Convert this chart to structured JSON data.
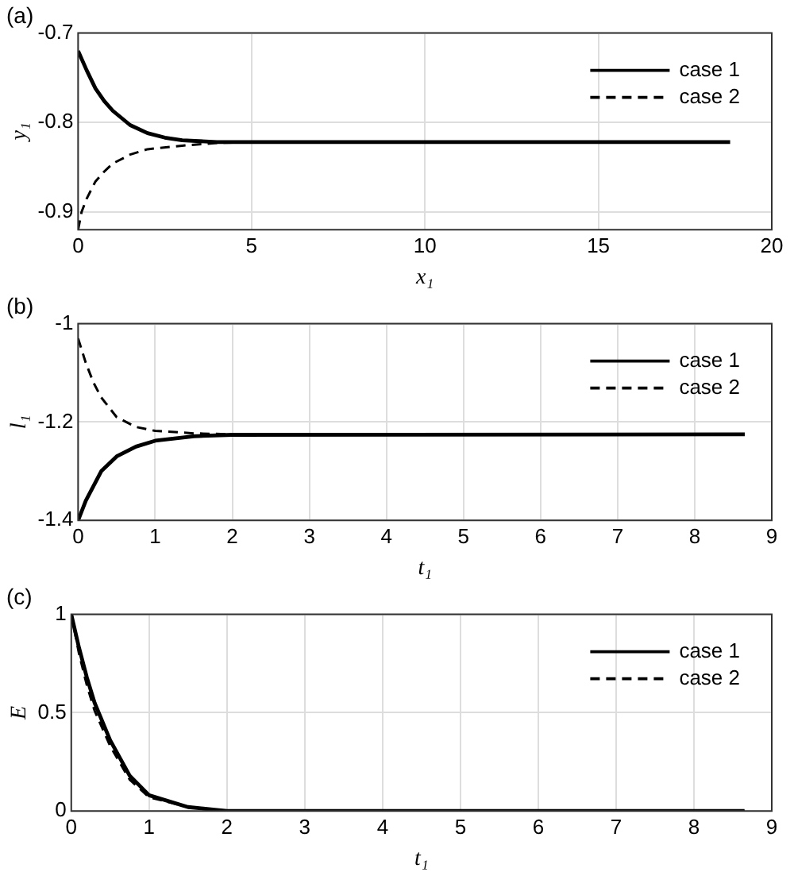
{
  "chart_data": [
    {
      "type": "line",
      "title": "(a)",
      "xlabel": "x₁",
      "ylabel": "y₁",
      "xlim": [
        0,
        20
      ],
      "ylim": [
        -0.92,
        -0.7
      ],
      "xticks": [
        0,
        5,
        10,
        15,
        20
      ],
      "yticks": [
        -0.9,
        -0.8,
        -0.7
      ],
      "grid": true,
      "legend": "top right",
      "series": [
        {
          "name": "case 1",
          "color": "#000000",
          "line_style": "solid",
          "x": [
            0,
            0.25,
            0.5,
            0.75,
            1,
            1.5,
            2,
            2.5,
            3,
            4,
            5,
            18.8
          ],
          "values": [
            -0.72,
            -0.742,
            -0.762,
            -0.776,
            -0.787,
            -0.803,
            -0.812,
            -0.817,
            -0.82,
            -0.822,
            -0.822,
            -0.822
          ]
        },
        {
          "name": "case 2",
          "color": "#000000",
          "line_style": "dashed",
          "x": [
            0,
            0.1,
            0.25,
            0.5,
            0.75,
            1,
            1.5,
            2,
            3,
            4,
            5,
            18.8
          ],
          "values": [
            -0.92,
            -0.9,
            -0.885,
            -0.866,
            -0.855,
            -0.846,
            -0.836,
            -0.83,
            -0.826,
            -0.823,
            -0.822,
            -0.822
          ]
        }
      ]
    },
    {
      "type": "line",
      "title": "(b)",
      "xlabel": "t₁",
      "ylabel": "l₁",
      "xlim": [
        0,
        9
      ],
      "ylim": [
        -1.4,
        -1
      ],
      "xticks": [
        0,
        1,
        2,
        3,
        4,
        5,
        6,
        7,
        8,
        9
      ],
      "yticks": [
        -1.4,
        -1.2,
        -1
      ],
      "grid": true,
      "legend": "top right",
      "series": [
        {
          "name": "case 1",
          "color": "#000000",
          "line_style": "solid",
          "x": [
            0,
            0.1,
            0.2,
            0.3,
            0.5,
            0.75,
            1,
            1.5,
            2,
            8.65
          ],
          "values": [
            -1.4,
            -1.36,
            -1.33,
            -1.3,
            -1.27,
            -1.25,
            -1.238,
            -1.229,
            -1.226,
            -1.225
          ]
        },
        {
          "name": "case 2",
          "color": "#000000",
          "line_style": "dashed",
          "x": [
            0,
            0.1,
            0.2,
            0.3,
            0.5,
            0.75,
            1,
            1.5,
            2,
            8.65
          ],
          "values": [
            -1.03,
            -1.08,
            -1.12,
            -1.15,
            -1.19,
            -1.21,
            -1.218,
            -1.223,
            -1.225,
            -1.225
          ]
        }
      ]
    },
    {
      "type": "line",
      "title": "(c)",
      "xlabel": "t₁",
      "ylabel": "E",
      "xlim": [
        0,
        9
      ],
      "ylim": [
        0,
        1
      ],
      "xticks": [
        0,
        1,
        2,
        3,
        4,
        5,
        6,
        7,
        8,
        9
      ],
      "yticks": [
        0,
        0.5,
        1
      ],
      "grid": true,
      "legend": "top right",
      "series": [
        {
          "name": "case 1",
          "color": "#000000",
          "line_style": "solid",
          "x": [
            0,
            0.1,
            0.2,
            0.3,
            0.5,
            0.75,
            1,
            1.5,
            2,
            3,
            8.65
          ],
          "values": [
            1,
            0.83,
            0.68,
            0.55,
            0.36,
            0.18,
            0.08,
            0.02,
            0,
            0,
            0
          ]
        },
        {
          "name": "case 2",
          "color": "#000000",
          "line_style": "dashed",
          "x": [
            0,
            0.1,
            0.2,
            0.3,
            0.5,
            0.75,
            1,
            1.5,
            2,
            3,
            8.65
          ],
          "values": [
            1,
            0.8,
            0.64,
            0.51,
            0.33,
            0.16,
            0.07,
            0.02,
            0,
            0,
            0
          ]
        }
      ]
    }
  ]
}
